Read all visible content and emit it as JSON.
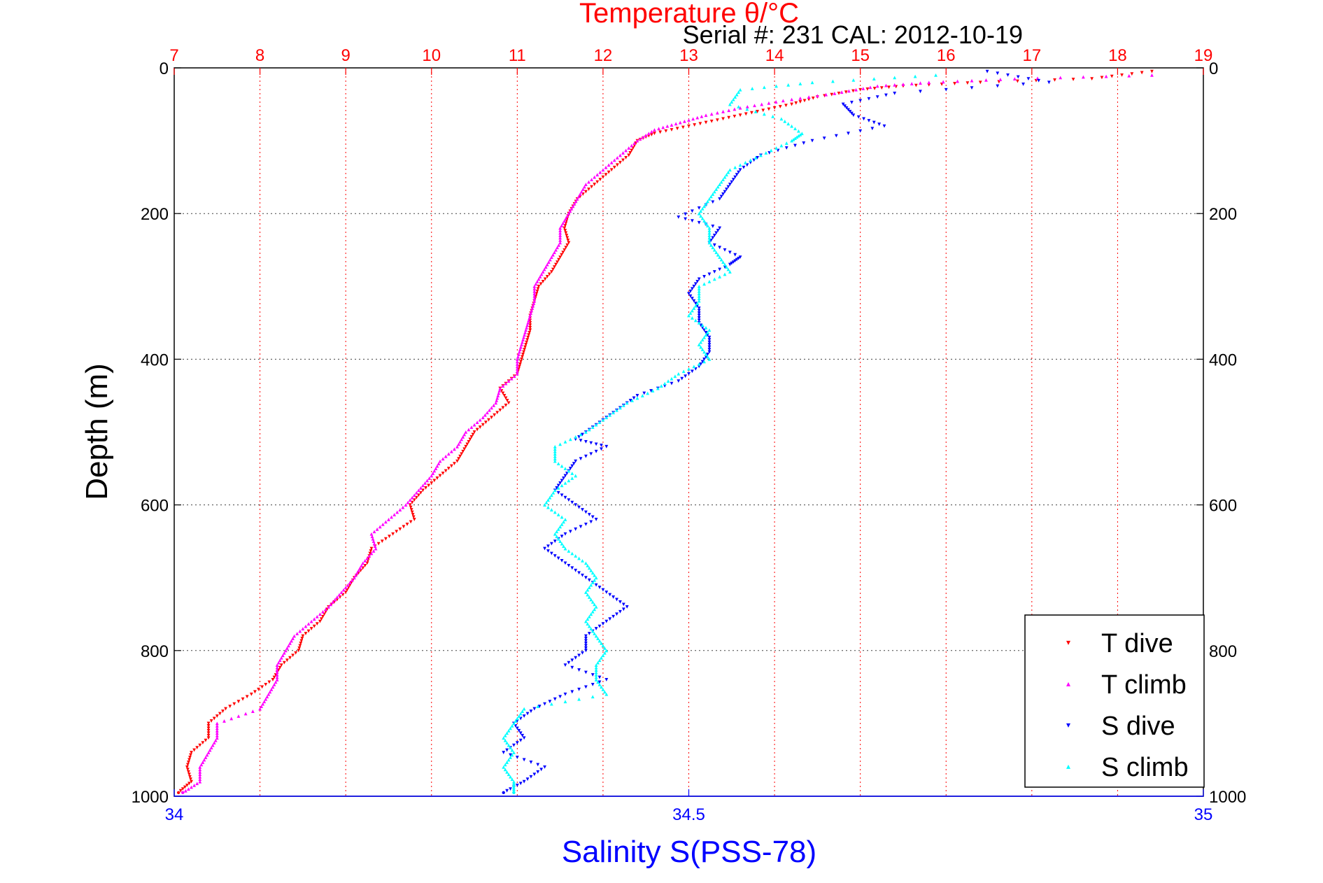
{
  "figure": {
    "top_title": "Temperature θ/°C",
    "subtitle": "Serial #: 231  CAL: 2012-10-19"
  },
  "colors": {
    "t_dive": "#ff0000",
    "t_climb": "#ff00ff",
    "s_dive": "#0000ff",
    "s_climb": "#00ffff",
    "temp_axis": "#ff0000",
    "sal_axis": "#0000ff",
    "grid": "#404040"
  },
  "chart_data": {
    "type": "scatter",
    "xlabel": "Salinity S(PSS-78)",
    "ylabel": "Depth (m)",
    "x2label": "Temperature θ/°C",
    "salinity_range": [
      34,
      35
    ],
    "temperature_range": [
      7,
      19
    ],
    "depth_range": [
      0,
      1000
    ],
    "y_reversed": true,
    "grid": true,
    "legend_position": "bottom-right",
    "temperature_ticks": [
      "7",
      "8",
      "9",
      "10",
      "11",
      "12",
      "13",
      "14",
      "15",
      "16",
      "17",
      "18",
      "19"
    ],
    "salinity_ticks": [
      "34",
      "34.5",
      "35"
    ],
    "depth_ticks": [
      "0",
      "200",
      "400",
      "600",
      "800",
      "1000"
    ],
    "series": [
      {
        "name": "T dive",
        "axis": "temperature",
        "points": [
          [
            18.4,
            5
          ],
          [
            17.7,
            15
          ],
          [
            16.4,
            20
          ],
          [
            15.5,
            25
          ],
          [
            15.0,
            30
          ],
          [
            14.5,
            40
          ],
          [
            14.2,
            50
          ],
          [
            13.8,
            60
          ],
          [
            13.4,
            70
          ],
          [
            13.0,
            80
          ],
          [
            12.6,
            90
          ],
          [
            12.4,
            100
          ],
          [
            12.3,
            120
          ],
          [
            12.1,
            140
          ],
          [
            11.9,
            160
          ],
          [
            11.7,
            180
          ],
          [
            11.6,
            200
          ],
          [
            11.55,
            220
          ],
          [
            11.6,
            240
          ],
          [
            11.5,
            260
          ],
          [
            11.4,
            280
          ],
          [
            11.25,
            300
          ],
          [
            11.2,
            320
          ],
          [
            11.15,
            340
          ],
          [
            11.15,
            360
          ],
          [
            11.1,
            380
          ],
          [
            11.05,
            400
          ],
          [
            11.0,
            420
          ],
          [
            10.8,
            440
          ],
          [
            10.9,
            460
          ],
          [
            10.7,
            480
          ],
          [
            10.5,
            500
          ],
          [
            10.4,
            520
          ],
          [
            10.3,
            540
          ],
          [
            10.1,
            560
          ],
          [
            9.9,
            580
          ],
          [
            9.75,
            600
          ],
          [
            9.8,
            620
          ],
          [
            9.55,
            640
          ],
          [
            9.3,
            660
          ],
          [
            9.25,
            680
          ],
          [
            9.1,
            700
          ],
          [
            9.0,
            720
          ],
          [
            8.8,
            740
          ],
          [
            8.7,
            760
          ],
          [
            8.5,
            780
          ],
          [
            8.45,
            800
          ],
          [
            8.25,
            820
          ],
          [
            8.15,
            840
          ],
          [
            7.9,
            860
          ],
          [
            7.6,
            880
          ],
          [
            7.4,
            900
          ],
          [
            7.4,
            920
          ],
          [
            7.2,
            940
          ],
          [
            7.15,
            960
          ],
          [
            7.2,
            980
          ],
          [
            7.05,
            995
          ]
        ]
      },
      {
        "name": "T climb",
        "axis": "temperature",
        "points": [
          [
            18.4,
            10
          ],
          [
            16.8,
            15
          ],
          [
            15.8,
            20
          ],
          [
            15.2,
            25
          ],
          [
            14.7,
            35
          ],
          [
            14.1,
            45
          ],
          [
            13.6,
            55
          ],
          [
            13.2,
            65
          ],
          [
            12.9,
            75
          ],
          [
            12.6,
            85
          ],
          [
            12.4,
            100
          ],
          [
            12.2,
            120
          ],
          [
            12.0,
            140
          ],
          [
            11.8,
            160
          ],
          [
            11.7,
            180
          ],
          [
            11.6,
            200
          ],
          [
            11.5,
            220
          ],
          [
            11.5,
            240
          ],
          [
            11.4,
            260
          ],
          [
            11.3,
            280
          ],
          [
            11.2,
            300
          ],
          [
            11.2,
            320
          ],
          [
            11.15,
            340
          ],
          [
            11.1,
            360
          ],
          [
            11.05,
            380
          ],
          [
            11.0,
            400
          ],
          [
            11.0,
            420
          ],
          [
            10.8,
            440
          ],
          [
            10.75,
            460
          ],
          [
            10.6,
            480
          ],
          [
            10.4,
            500
          ],
          [
            10.3,
            520
          ],
          [
            10.1,
            540
          ],
          [
            10.0,
            560
          ],
          [
            9.85,
            580
          ],
          [
            9.7,
            600
          ],
          [
            9.5,
            620
          ],
          [
            9.3,
            640
          ],
          [
            9.35,
            660
          ],
          [
            9.2,
            680
          ],
          [
            9.1,
            700
          ],
          [
            8.95,
            720
          ],
          [
            8.8,
            740
          ],
          [
            8.6,
            760
          ],
          [
            8.4,
            780
          ],
          [
            8.3,
            800
          ],
          [
            8.2,
            820
          ],
          [
            8.2,
            840
          ],
          [
            8.1,
            860
          ],
          [
            8.0,
            880
          ],
          [
            7.5,
            900
          ],
          [
            7.5,
            920
          ],
          [
            7.4,
            940
          ],
          [
            7.3,
            960
          ],
          [
            7.3,
            980
          ],
          [
            7.1,
            995
          ]
        ]
      },
      {
        "name": "S dive",
        "axis": "salinity",
        "points": [
          [
            34.79,
            5
          ],
          [
            34.85,
            20
          ],
          [
            34.7,
            35
          ],
          [
            34.65,
            50
          ],
          [
            34.66,
            65
          ],
          [
            34.69,
            80
          ],
          [
            34.62,
            100
          ],
          [
            34.57,
            120
          ],
          [
            34.55,
            140
          ],
          [
            34.54,
            160
          ],
          [
            34.53,
            180
          ],
          [
            34.49,
            205
          ],
          [
            34.53,
            220
          ],
          [
            34.52,
            240
          ],
          [
            34.55,
            260
          ],
          [
            34.54,
            270
          ],
          [
            34.51,
            290
          ],
          [
            34.5,
            310
          ],
          [
            34.51,
            330
          ],
          [
            34.51,
            350
          ],
          [
            34.52,
            370
          ],
          [
            34.52,
            390
          ],
          [
            34.51,
            410
          ],
          [
            34.49,
            430
          ],
          [
            34.45,
            450
          ],
          [
            34.43,
            470
          ],
          [
            34.41,
            490
          ],
          [
            34.39,
            510
          ],
          [
            34.42,
            520
          ],
          [
            34.39,
            540
          ],
          [
            34.38,
            560
          ],
          [
            34.37,
            580
          ],
          [
            34.39,
            600
          ],
          [
            34.41,
            620
          ],
          [
            34.38,
            640
          ],
          [
            34.36,
            660
          ],
          [
            34.38,
            680
          ],
          [
            34.4,
            700
          ],
          [
            34.42,
            720
          ],
          [
            34.44,
            740
          ],
          [
            34.42,
            760
          ],
          [
            34.4,
            780
          ],
          [
            34.4,
            800
          ],
          [
            34.38,
            820
          ],
          [
            34.42,
            840
          ],
          [
            34.38,
            860
          ],
          [
            34.35,
            880
          ],
          [
            34.33,
            900
          ],
          [
            34.34,
            920
          ],
          [
            34.32,
            940
          ],
          [
            34.36,
            960
          ],
          [
            34.34,
            980
          ],
          [
            34.32,
            995
          ]
        ]
      },
      {
        "name": "S climb",
        "axis": "salinity",
        "points": [
          [
            34.74,
            10
          ],
          [
            34.62,
            20
          ],
          [
            34.55,
            30
          ],
          [
            34.54,
            50
          ],
          [
            34.59,
            70
          ],
          [
            34.61,
            90
          ],
          [
            34.6,
            100
          ],
          [
            34.57,
            120
          ],
          [
            34.54,
            140
          ],
          [
            34.53,
            160
          ],
          [
            34.52,
            180
          ],
          [
            34.51,
            200
          ],
          [
            34.52,
            220
          ],
          [
            34.52,
            240
          ],
          [
            34.53,
            260
          ],
          [
            34.54,
            280
          ],
          [
            34.51,
            300
          ],
          [
            34.51,
            320
          ],
          [
            34.5,
            340
          ],
          [
            34.52,
            360
          ],
          [
            34.51,
            380
          ],
          [
            34.52,
            400
          ],
          [
            34.49,
            420
          ],
          [
            34.47,
            440
          ],
          [
            34.44,
            460
          ],
          [
            34.42,
            480
          ],
          [
            34.4,
            500
          ],
          [
            34.37,
            520
          ],
          [
            34.37,
            540
          ],
          [
            34.39,
            560
          ],
          [
            34.37,
            580
          ],
          [
            34.36,
            600
          ],
          [
            34.38,
            620
          ],
          [
            34.37,
            640
          ],
          [
            34.38,
            660
          ],
          [
            34.4,
            680
          ],
          [
            34.41,
            700
          ],
          [
            34.4,
            720
          ],
          [
            34.41,
            740
          ],
          [
            34.4,
            760
          ],
          [
            34.41,
            780
          ],
          [
            34.42,
            800
          ],
          [
            34.41,
            820
          ],
          [
            34.41,
            840
          ],
          [
            34.42,
            860
          ],
          [
            34.34,
            880
          ],
          [
            34.33,
            900
          ],
          [
            34.32,
            920
          ],
          [
            34.33,
            940
          ],
          [
            34.32,
            960
          ],
          [
            34.33,
            980
          ],
          [
            34.33,
            995
          ]
        ]
      }
    ]
  }
}
